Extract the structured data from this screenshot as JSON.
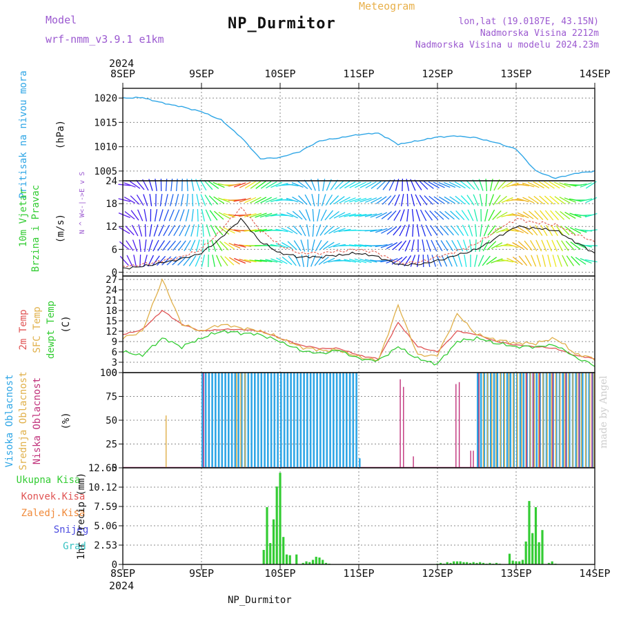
{
  "header": {
    "title": "NP_Durmitor",
    "subtitle": "Meteogram",
    "model_label": "Model",
    "model_name": "wrf-nmm_v3.9.1 e1km",
    "lonlat": "lon,lat (19.0187E, 43.15N)",
    "elevation": "Nadmorska Visina 2212m",
    "model_elevation": "Nadmorska Visina u modelu 2024.23m"
  },
  "footer": {
    "location": "NP_Durmitor",
    "credit": "made by Angel"
  },
  "colors": {
    "pressure": "#2fa6e6",
    "wind_speed": "#111111",
    "wind_gust": "#e0584a",
    "temp_2m": "#e05454",
    "temp_sfc": "#e0b04a",
    "temp_dew": "#33cc33",
    "cloud_high": "#2fa6e6",
    "cloud_mid": "#e0b04a",
    "cloud_low": "#c0307a",
    "precip_total": "#33cc33"
  },
  "chart_data": [
    {
      "type": "line",
      "panel": "pressure",
      "ylabel": "Pritisak na nivou mora",
      "unit": "(hPa)",
      "ylim": [
        1003,
        1022
      ],
      "yticks": [
        1005,
        1010,
        1015,
        1020
      ],
      "x_dates": [
        "8SEP",
        "9SEP",
        "10SEP",
        "11SEP",
        "12SEP",
        "13SEP",
        "14SEP"
      ],
      "x_year": "2024",
      "hours": [
        0,
        6,
        12,
        18,
        24,
        30,
        36,
        42,
        48,
        54,
        60,
        66,
        72,
        78,
        84,
        90,
        96,
        102,
        108,
        114,
        120,
        126,
        132,
        138,
        144
      ],
      "series": [
        {
          "values": [
            1020.0,
            1020.1,
            1019.0,
            1018.2,
            1017.2,
            1015.5,
            1012.0,
            1007.5,
            1007.8,
            1009.0,
            1011.2,
            1011.8,
            1012.5,
            1012.8,
            1010.5,
            1011.2,
            1012.0,
            1012.2,
            1011.8,
            1010.8,
            1009.5,
            1005.0,
            1003.5,
            1004.5,
            1005.0
          ]
        }
      ]
    },
    {
      "type": "line",
      "panel": "wind",
      "ylabel": "10m Vjetar",
      "ylabel2": "Brzina i Pravac",
      "unit": "(m/s)",
      "compass": "N ^ W<-|->E v S",
      "ylim": [
        -1,
        24
      ],
      "yticks": [
        0,
        6,
        12,
        18,
        24
      ],
      "hours": [
        0,
        6,
        12,
        18,
        24,
        30,
        36,
        42,
        48,
        54,
        60,
        66,
        72,
        78,
        84,
        90,
        96,
        102,
        108,
        114,
        120,
        126,
        132,
        138,
        144
      ],
      "series": [
        {
          "name": "speed",
          "values": [
            1.0,
            1.5,
            2.5,
            3.5,
            5.0,
            9.0,
            14.0,
            8.0,
            5.0,
            4.0,
            4.0,
            4.5,
            5.0,
            4.0,
            2.0,
            2.0,
            3.0,
            4.5,
            6.0,
            9.0,
            12.0,
            11.5,
            11.0,
            8.0,
            5.0
          ]
        },
        {
          "name": "gust",
          "values": [
            1.5,
            2.0,
            3.0,
            4.0,
            6.0,
            11.0,
            17.0,
            11.0,
            7.0,
            5.0,
            5.0,
            5.5,
            6.0,
            5.0,
            2.5,
            2.5,
            4.0,
            5.5,
            7.5,
            11.0,
            14.0,
            13.0,
            12.5,
            10.0,
            8.0
          ]
        }
      ]
    },
    {
      "type": "line",
      "panel": "temperature",
      "ylabel": "2m Temp",
      "ylabel2": "SFC Temp",
      "ylabel3": "dewpt Temp",
      "unit": "(C)",
      "ylim": [
        0,
        28
      ],
      "yticks": [
        0,
        3,
        6,
        9,
        12,
        15,
        18,
        21,
        24,
        27
      ],
      "hours": [
        0,
        6,
        12,
        18,
        24,
        30,
        36,
        42,
        48,
        54,
        60,
        66,
        72,
        78,
        84,
        90,
        96,
        102,
        108,
        114,
        120,
        126,
        132,
        138,
        144
      ],
      "series": [
        {
          "name": "2m Temp",
          "values": [
            11.0,
            12.5,
            18.0,
            14.0,
            12.0,
            12.5,
            12.5,
            12.0,
            10.0,
            8.0,
            7.0,
            7.0,
            5.0,
            4.0,
            14.5,
            7.5,
            6.0,
            12.0,
            11.0,
            9.0,
            8.0,
            7.5,
            7.0,
            5.0,
            4.0
          ]
        },
        {
          "name": "SFC Temp",
          "values": [
            10.0,
            12.0,
            27.0,
            14.0,
            12.0,
            14.0,
            13.0,
            12.0,
            10.0,
            7.5,
            6.5,
            6.5,
            4.5,
            3.5,
            19.5,
            5.0,
            5.0,
            17.0,
            11.0,
            9.5,
            8.5,
            8.5,
            10.0,
            5.5,
            4.0
          ]
        },
        {
          "name": "dewpt Temp",
          "values": [
            6.0,
            5.0,
            10.0,
            7.5,
            10.0,
            12.0,
            11.5,
            11.0,
            9.0,
            6.5,
            5.5,
            6.5,
            4.0,
            3.5,
            7.5,
            4.0,
            2.5,
            9.0,
            10.0,
            8.5,
            7.5,
            7.5,
            8.0,
            4.5,
            2.0
          ]
        }
      ]
    },
    {
      "type": "bar",
      "panel": "clouds",
      "ylabel": "Visoka Oblacnost",
      "ylabel2": "Srednja Oblacnost",
      "ylabel3": "Niska Oblacnost",
      "unit": "(%)",
      "ylim": [
        0,
        100
      ],
      "yticks": [
        0,
        25,
        50,
        75,
        100
      ],
      "series": [
        {
          "name": "Visoka Oblacnost",
          "segments": [
            [
              24,
              72,
              100
            ],
            [
              72,
              73,
              10
            ],
            [
              108,
              126,
              100
            ],
            [
              126,
              144,
              100
            ]
          ]
        },
        {
          "name": "Srednja Oblacnost",
          "segments": [
            [
              12.5,
              12.7,
              55
            ],
            [
              34,
              37,
              100
            ],
            [
              108,
              144,
              100
            ]
          ]
        },
        {
          "name": "Niska Oblacnost",
          "spikes": [
            [
              24.5,
              100
            ],
            [
              84.5,
              93
            ],
            [
              85.5,
              85
            ],
            [
              88.5,
              12
            ],
            [
              101.5,
              88
            ],
            [
              102.5,
              90
            ],
            [
              106,
              18
            ],
            [
              106.8,
              18
            ],
            [
              108.5,
              100
            ],
            [
              123,
              100
            ],
            [
              125,
              100
            ],
            [
              127,
              100
            ],
            [
              131,
              100
            ],
            [
              135,
              100
            ],
            [
              139,
              100
            ],
            [
              143,
              100
            ]
          ]
        }
      ]
    },
    {
      "type": "bar",
      "panel": "precipitation",
      "ylabel": "1hr Precip",
      "unit": "(mm)",
      "ylim": [
        0,
        12.65
      ],
      "yticks": [
        0,
        2.53,
        5.06,
        7.59,
        10.12,
        12.65
      ],
      "ytick_labels": [
        "0",
        "2.53",
        "5.06",
        "7.59",
        "10.12",
        "12.65"
      ],
      "legend": [
        "Ukupna Kisa",
        "Konvek.Kisa",
        "Zaledj.Kisa",
        "Snijeg",
        "Grad"
      ],
      "series": [
        {
          "name": "Ukupna Kisa",
          "hours": [
            43,
            44,
            45,
            46,
            47,
            48,
            49,
            50,
            51,
            53,
            55,
            56,
            57,
            58,
            59,
            60,
            61,
            62,
            63,
            96,
            97,
            98,
            99,
            100,
            101,
            102,
            103,
            104,
            105,
            106,
            107,
            108,
            109,
            110,
            111,
            112,
            113,
            114,
            115,
            118,
            119,
            120,
            121,
            122,
            123,
            124,
            125,
            126,
            127,
            128,
            130,
            131,
            132
          ],
          "values": [
            1.9,
            7.5,
            2.8,
            5.9,
            10.2,
            12.0,
            3.6,
            1.3,
            1.2,
            1.3,
            0.2,
            0.4,
            0.3,
            0.6,
            1.0,
            0.9,
            0.6,
            0.2,
            0.1,
            0.1,
            0.2,
            0.1,
            0.3,
            0.2,
            0.4,
            0.4,
            0.4,
            0.3,
            0.3,
            0.2,
            0.3,
            0.2,
            0.3,
            0.2,
            0.1,
            0.2,
            0.1,
            0.2,
            0.1,
            1.4,
            0.5,
            0.4,
            0.4,
            0.6,
            3.0,
            8.3,
            4.1,
            7.5,
            2.9,
            4.5,
            0.2,
            0.4,
            0.1
          ]
        }
      ]
    }
  ]
}
